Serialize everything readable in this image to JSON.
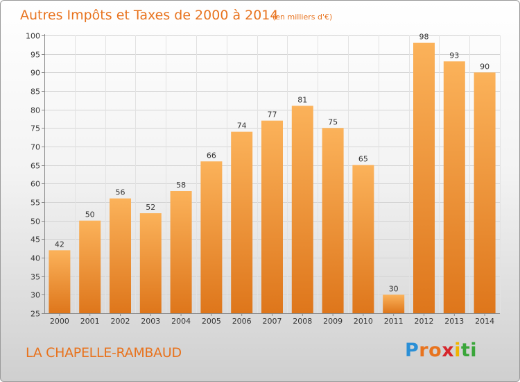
{
  "chart_data": {
    "type": "bar",
    "title": "Autres Impôts et Taxes de 2000 à 2014",
    "subtitle": "(en milliers d'€)",
    "categories": [
      "2000",
      "2001",
      "2002",
      "2003",
      "2004",
      "2005",
      "2006",
      "2007",
      "2008",
      "2009",
      "2010",
      "2011",
      "2012",
      "2013",
      "2014"
    ],
    "values": [
      42,
      50,
      56,
      52,
      58,
      66,
      74,
      77,
      81,
      75,
      65,
      30,
      98,
      93,
      90
    ],
    "ylim": [
      25,
      100
    ],
    "yticks": [
      25,
      30,
      35,
      40,
      45,
      50,
      55,
      60,
      65,
      70,
      75,
      80,
      85,
      90,
      95,
      100
    ],
    "xlabel": "",
    "ylabel": "",
    "grid": true
  },
  "location": "LA CHAPELLE-RAMBAUD",
  "logo": {
    "text": "Proxiti",
    "letter_colors": [
      "#2a8fd6",
      "#e8731e",
      "#e8731e",
      "#d6262c",
      "#f0b400",
      "#3aa63a",
      "#3aa63a"
    ]
  },
  "colors": {
    "bar_light": "#fbb25a",
    "bar_dark": "#de761b",
    "title": "#e8731e"
  }
}
